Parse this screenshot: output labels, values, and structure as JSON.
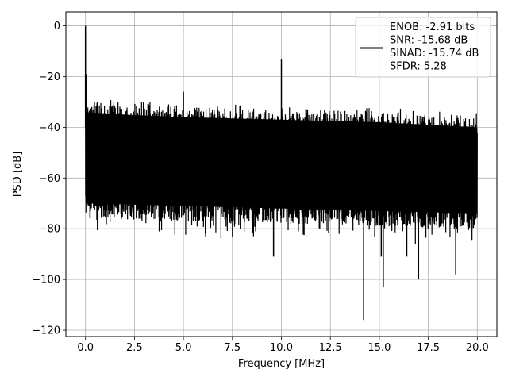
{
  "chart_data": {
    "type": "line",
    "title": "",
    "xlabel": "Frequency [MHz]",
    "ylabel": "PSD [dB]",
    "xlim": [
      -1.0,
      21.0
    ],
    "ylim": [
      -122.5,
      5.5
    ],
    "xticks": [
      0.0,
      2.5,
      5.0,
      7.5,
      10.0,
      12.5,
      15.0,
      17.5,
      20.0
    ],
    "xtick_labels": [
      "0.0",
      "2.5",
      "5.0",
      "7.5",
      "10.0",
      "12.5",
      "15.0",
      "17.5",
      "20.0"
    ],
    "yticks": [
      0,
      -20,
      -40,
      -60,
      -80,
      -100,
      -120
    ],
    "ytick_labels": [
      "0",
      "−20",
      "−40",
      "−60",
      "−80",
      "−100",
      "−120"
    ],
    "grid": true,
    "legend_position": "top-right",
    "series": [
      {
        "name": "ENOB: -2.91 bits\nSNR: -15.68 dB\nSINAD: -15.74 dB\nSFDR: 5.28",
        "color": "#000000",
        "noise_band": {
          "x_start": 0.0,
          "x_end": 20.0,
          "upper_envelope_db": [
            [
              0.0,
              -28
            ],
            [
              2.0,
              -29
            ],
            [
              5.0,
              -30
            ],
            [
              10.0,
              -31
            ],
            [
              15.0,
              -32
            ],
            [
              20.0,
              -34
            ]
          ],
          "lower_envelope_db": [
            [
              0.0,
              -76
            ],
            [
              5.0,
              -77
            ],
            [
              10.0,
              -78
            ],
            [
              15.0,
              -79
            ],
            [
              20.0,
              -80
            ]
          ]
        },
        "spikes": [
          {
            "x": 0.0,
            "y": 0
          },
          {
            "x": 0.05,
            "y": -19
          },
          {
            "x": 5.0,
            "y": -26
          },
          {
            "x": 10.0,
            "y": -13
          },
          {
            "x": 14.2,
            "y": -116
          },
          {
            "x": 15.2,
            "y": -103
          },
          {
            "x": 17.0,
            "y": -100
          },
          {
            "x": 18.9,
            "y": -98
          },
          {
            "x": 9.6,
            "y": -91
          },
          {
            "x": 15.1,
            "y": -91
          },
          {
            "x": 16.4,
            "y": -91
          }
        ]
      }
    ],
    "legend_lines": [
      "ENOB: -2.91 bits",
      "SNR: -15.68 dB",
      "SINAD: -15.74 dB",
      "SFDR: 5.28"
    ]
  }
}
